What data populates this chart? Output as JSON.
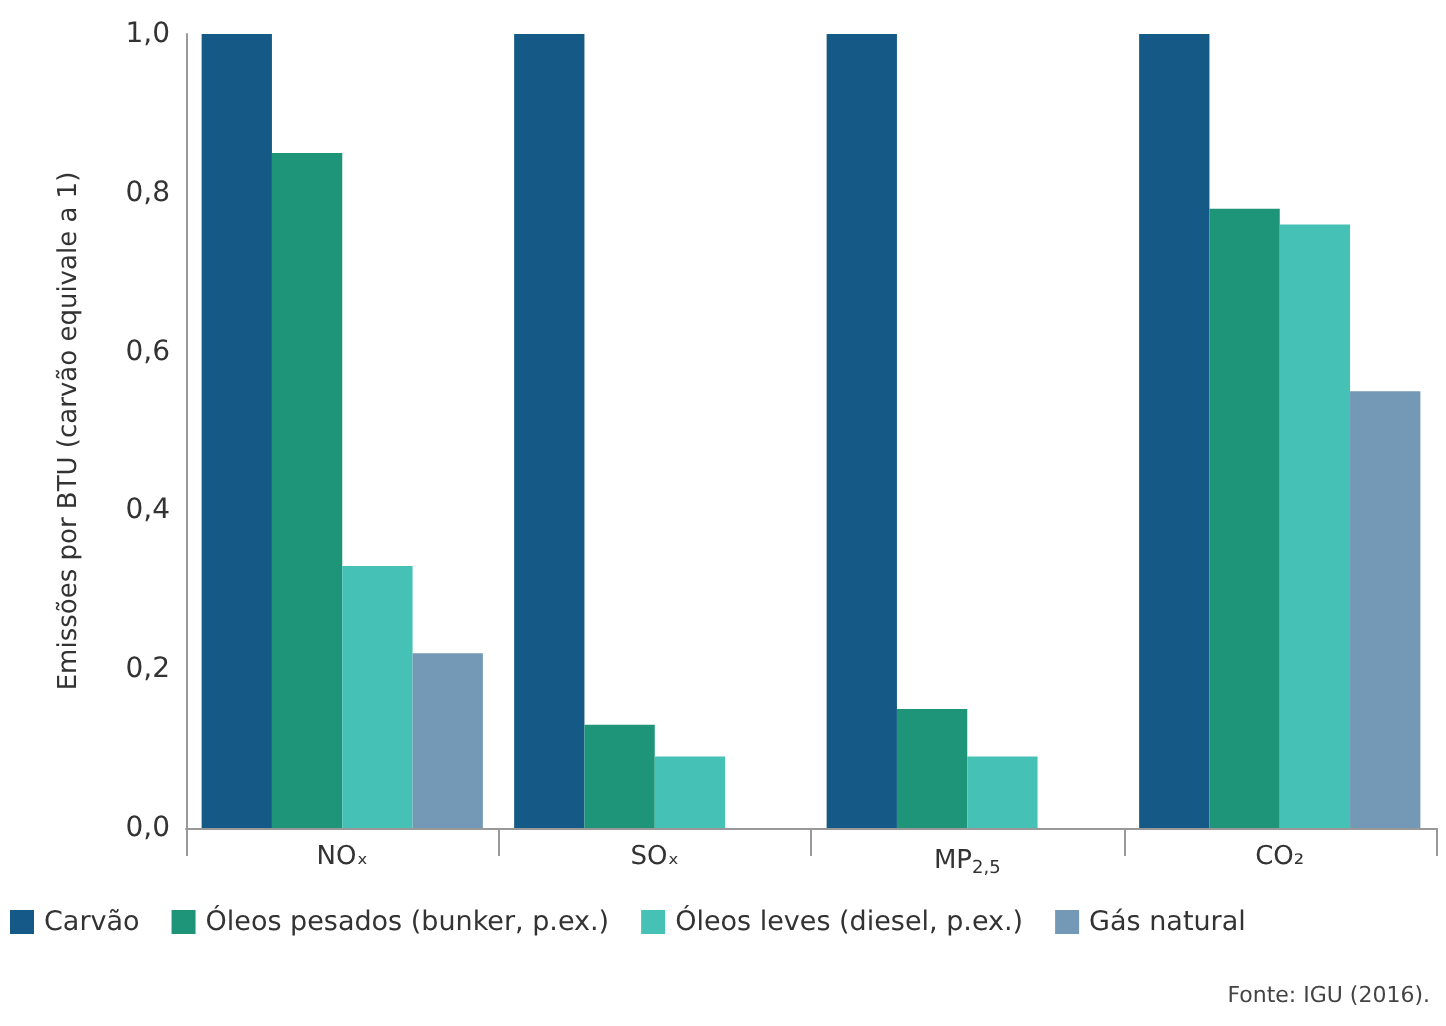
{
  "chart_data": {
    "type": "bar",
    "ylabel": "Emissões por BTU (carvão equivale a 1)",
    "categories": [
      "NOₓ",
      "SOₓ",
      "MP$_{2,5}$",
      "CO₂"
    ],
    "series": [
      {
        "name": "Carvão",
        "color": "#155a87",
        "values": [
          1.0,
          1.0,
          1.0,
          1.0
        ]
      },
      {
        "name": "Óleos pesados (bunker, p.ex.)",
        "color": "#1e9478",
        "values": [
          0.85,
          0.13,
          0.15,
          0.78
        ]
      },
      {
        "name": "Óleos leves (diesel, p.ex.)",
        "color": "#45c2b5",
        "values": [
          0.33,
          0.09,
          0.09,
          0.76
        ]
      },
      {
        "name": "Gás natural",
        "color": "#7399b6",
        "values": [
          0.22,
          0,
          0,
          0.55
        ]
      }
    ],
    "ylim": [
      0,
      1
    ],
    "yticks": [
      {
        "value": 0,
        "label": "0,0"
      },
      {
        "value": 0.2,
        "label": "0,2"
      },
      {
        "value": 0.4,
        "label": "0,4"
      },
      {
        "value": 0.6,
        "label": "0,6"
      },
      {
        "value": 0.8,
        "label": "0,8"
      },
      {
        "value": 1,
        "label": "1,0"
      }
    ],
    "grid": false,
    "legend": "bottom",
    "annotations": [
      "Fonte: IGU (2016)."
    ]
  }
}
